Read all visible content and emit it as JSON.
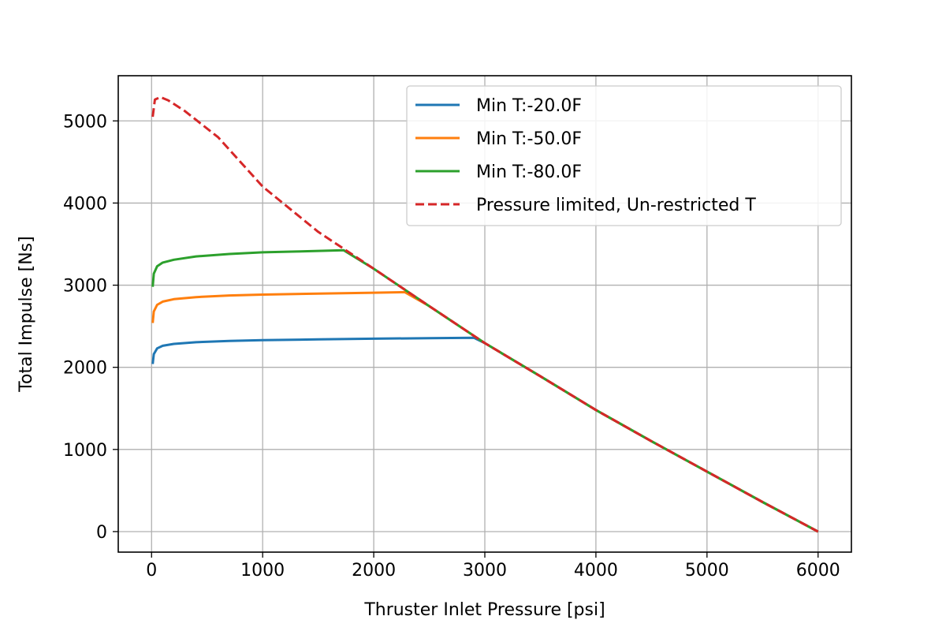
{
  "chart_data": {
    "type": "line",
    "title": "",
    "xlabel": "Thruster Inlet Pressure [psi]",
    "ylabel": "Total Impulse [Ns]",
    "xlim": [
      -300,
      6300
    ],
    "ylim": [
      -250,
      5550
    ],
    "xticks": [
      0,
      1000,
      2000,
      3000,
      4000,
      5000,
      6000
    ],
    "yticks": [
      0,
      1000,
      2000,
      3000,
      4000,
      5000
    ],
    "xtick_labels": [
      "0",
      "1000",
      "2000",
      "3000",
      "4000",
      "5000",
      "6000"
    ],
    "ytick_labels": [
      "0",
      "1000",
      "2000",
      "3000",
      "4000",
      "5000"
    ],
    "grid": true,
    "legend_position": "top-right",
    "series": [
      {
        "name": "Min T:-20.0F",
        "color": "#1f77b4",
        "style": "solid",
        "x": [
          10,
          20,
          50,
          100,
          200,
          400,
          700,
          1000,
          1500,
          2000,
          2500,
          2900,
          3000,
          3500,
          4000,
          4500,
          5000,
          5500,
          6000
        ],
        "y": [
          2040,
          2160,
          2230,
          2262,
          2285,
          2305,
          2322,
          2330,
          2340,
          2348,
          2355,
          2360,
          2295,
          1890,
          1480,
          1100,
          730,
          360,
          0
        ]
      },
      {
        "name": "Min T:-50.0F",
        "color": "#ff7f0e",
        "style": "solid",
        "x": [
          10,
          20,
          50,
          100,
          200,
          400,
          700,
          1000,
          1500,
          2000,
          2280,
          2500,
          3000,
          3500,
          4000,
          4500,
          5000,
          5500,
          6000
        ],
        "y": [
          2540,
          2680,
          2760,
          2800,
          2830,
          2855,
          2875,
          2885,
          2898,
          2908,
          2915,
          2745,
          2295,
          1890,
          1480,
          1100,
          730,
          360,
          0
        ]
      },
      {
        "name": "Min T:-80.0F",
        "color": "#2ca02c",
        "style": "solid",
        "x": [
          10,
          20,
          50,
          100,
          200,
          400,
          700,
          1000,
          1300,
          1730,
          2000,
          2500,
          3000,
          3500,
          4000,
          4500,
          5000,
          5500,
          6000
        ],
        "y": [
          2980,
          3140,
          3230,
          3275,
          3310,
          3350,
          3380,
          3400,
          3410,
          3425,
          3200,
          2745,
          2295,
          1890,
          1480,
          1100,
          730,
          360,
          0
        ]
      },
      {
        "name": "Pressure limited, Un-restricted T",
        "color": "#d62728",
        "style": "dashed",
        "x": [
          10,
          30,
          80,
          150,
          300,
          600,
          1000,
          1500,
          2000,
          2500,
          3000,
          3500,
          4000,
          4500,
          5000,
          5500,
          6000
        ],
        "y": [
          5050,
          5260,
          5290,
          5250,
          5120,
          4800,
          4200,
          3650,
          3200,
          2745,
          2295,
          1890,
          1480,
          1100,
          730,
          360,
          0
        ]
      }
    ]
  }
}
